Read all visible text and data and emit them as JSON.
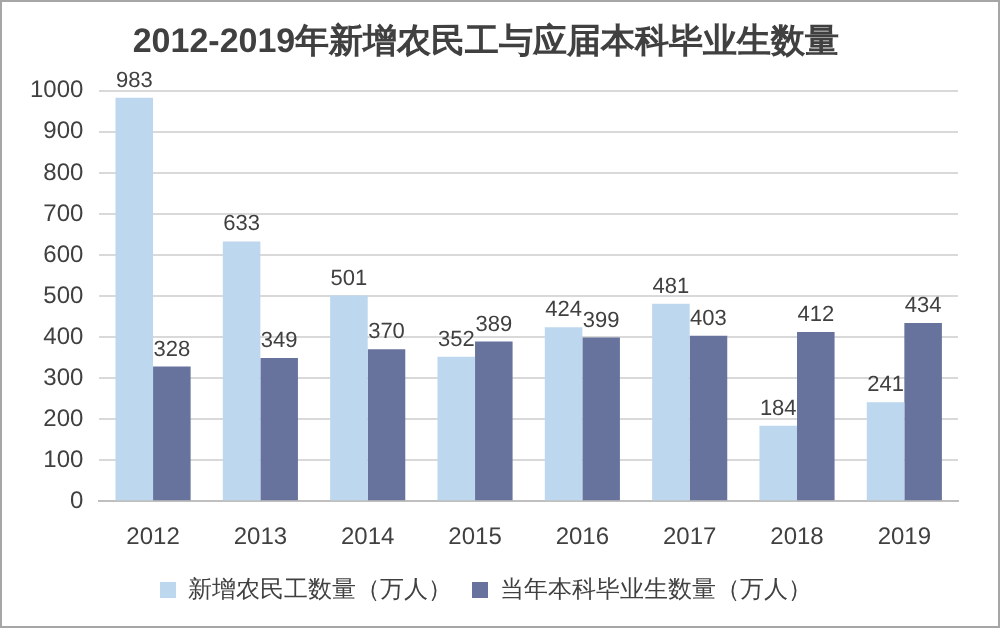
{
  "chart_data": {
    "type": "bar",
    "title": "2012-2019年新增农民工与应届本科毕业生数量",
    "categories": [
      "2012",
      "2013",
      "2014",
      "2015",
      "2016",
      "2017",
      "2018",
      "2019"
    ],
    "series": [
      {
        "name": "新增农民工数量（万人）",
        "color": "#bdd7ee",
        "values": [
          983,
          633,
          501,
          352,
          424,
          481,
          184,
          241
        ]
      },
      {
        "name": "当年本科毕业生数量（万人）",
        "color": "#67739c",
        "values": [
          328,
          349,
          370,
          389,
          399,
          403,
          412,
          434
        ]
      }
    ],
    "ylim": [
      0,
      1000
    ],
    "yticks": [
      0,
      100,
      200,
      300,
      400,
      500,
      600,
      700,
      800,
      900,
      1000
    ],
    "grid": "y",
    "legend": "bottom",
    "data_labels": true
  }
}
